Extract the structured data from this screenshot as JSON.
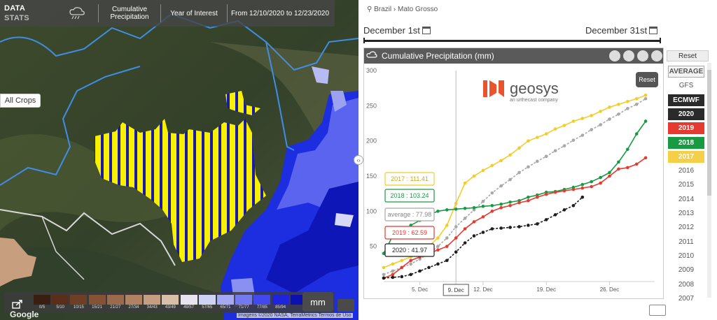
{
  "map": {
    "data_label": "DATA",
    "stats_label": "STATS",
    "precip_icon": "rain-cloud-icon",
    "tab_cumulative": "Cumulative Precipitation",
    "tab_year": "Year of Interest",
    "tab_range": "From 12/10/2020 to 12/23/2020",
    "all_crops": "All Crops",
    "unit_button": "mm",
    "google": "Google",
    "attribution": "Imagens ©2020 NASA, TerraMetrics   Termos de Uso",
    "legend": [
      {
        "label": "0/5",
        "color": "#3a1e12"
      },
      {
        "label": "5/10",
        "color": "#5a2e1a"
      },
      {
        "label": "10/15",
        "color": "#6e3e25"
      },
      {
        "label": "15/21",
        "color": "#855236"
      },
      {
        "label": "21/27",
        "color": "#9b6a4c"
      },
      {
        "label": "27/34",
        "color": "#b08262"
      },
      {
        "label": "34/43",
        "color": "#c59e82"
      },
      {
        "label": "43/49",
        "color": "#d9bea8"
      },
      {
        "label": "49/57",
        "color": "#e8e4ef"
      },
      {
        "label": "57/65",
        "color": "#cfd2f3"
      },
      {
        "label": "65/71",
        "color": "#a5a9f1"
      },
      {
        "label": "71/77",
        "color": "#7479f0"
      },
      {
        "label": "77/85",
        "color": "#4348ee"
      },
      {
        "label": "85/94",
        "color": "#1f23d9"
      },
      {
        "label": "",
        "color": "#0d10b0"
      }
    ]
  },
  "panel": {
    "breadcrumb": "Brazil › Mato Grosso",
    "date_start": "December 1st",
    "date_end": "December 31st",
    "chart_title": "Cumulative Precipitation (mm)",
    "reset_chart": "Reset",
    "reset_side": "Reset",
    "logo_text": "geosys",
    "logo_sub": "an urthecast company",
    "sidebar": [
      {
        "label": "AVERAGE",
        "style": "outline"
      },
      {
        "label": "GFS",
        "style": "plain"
      },
      {
        "label": "ECMWF",
        "style": "dark"
      },
      {
        "label": "2020",
        "style": "black"
      },
      {
        "label": "2019",
        "style": "red"
      },
      {
        "label": "2018",
        "style": "green"
      },
      {
        "label": "2017",
        "style": "yellow"
      },
      {
        "label": "2016",
        "style": "plain"
      },
      {
        "label": "2015",
        "style": "plain"
      },
      {
        "label": "2014",
        "style": "plain"
      },
      {
        "label": "2013",
        "style": "plain"
      },
      {
        "label": "2012",
        "style": "plain"
      },
      {
        "label": "2011",
        "style": "plain"
      },
      {
        "label": "2010",
        "style": "plain"
      },
      {
        "label": "2009",
        "style": "plain"
      },
      {
        "label": "2008",
        "style": "plain"
      },
      {
        "label": "2007",
        "style": "plain"
      }
    ]
  },
  "chart_data": {
    "type": "line",
    "title": "Cumulative Precipitation (mm)",
    "ylim": [
      0,
      300
    ],
    "yticks": [
      50,
      100,
      150,
      200,
      250,
      300
    ],
    "xlim": [
      1,
      31
    ],
    "xticks": [
      {
        "x": 5,
        "label": "5. Dec"
      },
      {
        "x": 9,
        "label": "9. Dec"
      },
      {
        "x": 12,
        "label": "12. Dec"
      },
      {
        "x": 19,
        "label": "19. Dec"
      },
      {
        "x": 26,
        "label": "26. Dec"
      }
    ],
    "crosshair_x": 9,
    "series": [
      {
        "name": "2017",
        "color": "#f2cd2a",
        "dashed": false,
        "tooltip": "2017 : 111.41",
        "x": [
          1,
          2,
          3,
          4,
          5,
          6,
          7,
          8,
          9,
          10,
          11,
          12,
          13,
          14,
          15,
          16,
          17,
          18,
          19,
          20,
          21,
          22,
          23,
          24,
          25,
          26,
          27,
          28,
          29,
          30
        ],
        "y": [
          20,
          25,
          30,
          35,
          40,
          50,
          62,
          80,
          111,
          140,
          150,
          158,
          165,
          172,
          180,
          190,
          200,
          205,
          210,
          217,
          222,
          228,
          232,
          236,
          242,
          248,
          252,
          256,
          260,
          265
        ]
      },
      {
        "name": "average",
        "color": "#a8a8a8",
        "dashed": true,
        "tooltip": "average : 77.98",
        "x": [
          1,
          2,
          3,
          4,
          5,
          6,
          7,
          8,
          9,
          10,
          11,
          12,
          13,
          14,
          15,
          16,
          17,
          18,
          19,
          20,
          21,
          22,
          23,
          24,
          25,
          26,
          27,
          28,
          29,
          30
        ],
        "y": [
          10,
          15,
          20,
          25,
          32,
          40,
          50,
          62,
          78,
          90,
          102,
          114,
          126,
          136,
          145,
          155,
          163,
          171,
          178,
          186,
          193,
          201,
          208,
          216,
          223,
          231,
          238,
          246,
          252,
          260
        ]
      },
      {
        "name": "2018",
        "color": "#189a42",
        "dashed": false,
        "tooltip": "2018 : 103.24",
        "x": [
          1,
          2,
          3,
          4,
          5,
          6,
          7,
          8,
          9,
          10,
          11,
          12,
          13,
          14,
          15,
          16,
          17,
          18,
          19,
          20,
          21,
          22,
          23,
          24,
          25,
          26,
          27,
          28,
          29,
          30
        ],
        "y": [
          40,
          65,
          68,
          80,
          87,
          95,
          100,
          102,
          103,
          104,
          105,
          107,
          108,
          110,
          113,
          115,
          120,
          123,
          127,
          128,
          131,
          134,
          138,
          142,
          148,
          155,
          170,
          188,
          210,
          228
        ]
      },
      {
        "name": "2019",
        "color": "#e53a30",
        "dashed": false,
        "tooltip": "2019 : 62.59",
        "x": [
          1,
          2,
          3,
          4,
          5,
          6,
          7,
          8,
          9,
          10,
          11,
          12,
          13,
          14,
          15,
          16,
          17,
          18,
          19,
          20,
          21,
          22,
          23,
          24,
          25,
          26,
          27,
          28,
          29,
          30
        ],
        "y": [
          5,
          10,
          20,
          30,
          35,
          40,
          45,
          50,
          62,
          75,
          85,
          92,
          100,
          105,
          108,
          112,
          115,
          120,
          124,
          127,
          129,
          131,
          133,
          135,
          140,
          150,
          160,
          162,
          167,
          176
        ]
      },
      {
        "name": "2020",
        "color": "#1e1e1e",
        "dashed": true,
        "tooltip": "2020 : 41.97",
        "x": [
          1,
          2,
          3,
          4,
          5,
          6,
          7,
          8,
          9,
          10,
          11,
          12,
          13,
          14,
          15,
          16,
          17,
          18,
          19,
          20,
          21,
          22,
          23
        ],
        "y": [
          5,
          6,
          7,
          10,
          15,
          20,
          25,
          30,
          42,
          55,
          65,
          70,
          75,
          76,
          77,
          78,
          80,
          82,
          88,
          95,
          102,
          108,
          120
        ]
      }
    ]
  }
}
